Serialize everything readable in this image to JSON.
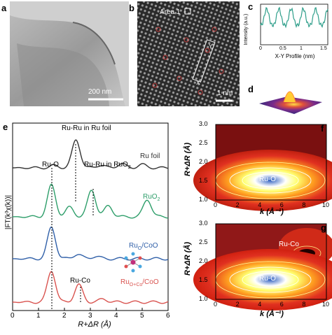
{
  "panels": {
    "a": {
      "label": "a",
      "scale_bar": "200 nm"
    },
    "b": {
      "label": "b",
      "area_label": "Area 1",
      "scale_bar": "1 nm",
      "x_mark": "X",
      "y_mark": "Y"
    },
    "c": {
      "label": "c",
      "xlabel": "X-Y Profile (nm)",
      "ylabel": "Intensity (a.u.)",
      "xticks": [
        "0",
        "0.5",
        "1",
        "1.5"
      ]
    },
    "d": {
      "label": "d"
    },
    "e": {
      "label": "e",
      "ylabel": "|FT(k³χ(k))|",
      "xlabel": "R+ΔR (Å)",
      "annotations": {
        "ru_ru_foil": "Ru-Ru in Ru foil",
        "ru_o": "Ru-O",
        "ru_ru_ruo2": "Ru-Ru in RuO",
        "ru_co": "Ru-Co"
      },
      "legend": {
        "ru_foil": "Ru foil",
        "ruo2": "RuO",
        "ruo_coo_a": "Ru",
        "ruo_coo_b": "O",
        "ruo_coo_c": "/CoO",
        "ruoco_a": "Ru",
        "ruoco_b": "O+Co",
        "ruoco_c": "/CoO",
        "sub2": "2"
      }
    },
    "f": {
      "label": "f",
      "ylabel": "R+ΔR (Å)",
      "xlabel": "k (Å⁻¹)",
      "peak_label": "Ru-O"
    },
    "g": {
      "label": "g",
      "ylabel": "R+ΔR (Å)",
      "xlabel": "k (Å⁻¹)",
      "peak_label_1": "Ru-O",
      "peak_label_2": "Ru-Co"
    }
  },
  "chart_data": [
    {
      "type": "line",
      "panel": "e",
      "xlim": [
        0,
        6
      ],
      "xticks": [
        0,
        1,
        2,
        3,
        4,
        5,
        6
      ],
      "series": [
        {
          "name": "Ru foil",
          "color": "#333333",
          "peaks": [
            [
              1.6,
              0.08
            ],
            [
              2.45,
              1.0
            ],
            [
              3.4,
              0.1
            ],
            [
              4.2,
              0.15
            ],
            [
              5.0,
              0.12
            ]
          ]
        },
        {
          "name": "RuO2",
          "color": "#2e9e6a",
          "peaks": [
            [
              1.5,
              1.0
            ],
            [
              2.2,
              0.3
            ],
            [
              3.05,
              0.85
            ],
            [
              3.7,
              0.35
            ],
            [
              5.2,
              0.55
            ]
          ]
        },
        {
          "name": "RuO/CoO",
          "color": "#2f5fa8",
          "peaks": [
            [
              1.5,
              1.0
            ],
            [
              2.5,
              0.15
            ],
            [
              3.2,
              0.08
            ]
          ]
        },
        {
          "name": "RuO+Co/CoO",
          "color": "#d9534f",
          "peaks": [
            [
              1.5,
              1.0
            ],
            [
              2.55,
              0.55
            ],
            [
              3.5,
              0.1
            ]
          ]
        }
      ]
    },
    {
      "type": "heatmap",
      "panel": "f",
      "xlim": [
        0,
        10
      ],
      "ylim": [
        1.0,
        3.0
      ],
      "xticks": [
        0,
        2,
        4,
        6,
        8,
        10
      ],
      "yticks": [
        1.0,
        1.5,
        2.0,
        2.5,
        3.0
      ],
      "maxima": [
        {
          "label": "Ru-O",
          "k": 4.8,
          "R": 1.45
        }
      ]
    },
    {
      "type": "heatmap",
      "panel": "g",
      "xlim": [
        0,
        10
      ],
      "ylim": [
        1.0,
        3.0
      ],
      "xticks": [
        0,
        2,
        4,
        6,
        8,
        10
      ],
      "yticks": [
        1.0,
        1.5,
        2.0,
        2.5,
        3.0
      ],
      "maxima": [
        {
          "label": "Ru-O",
          "k": 4.8,
          "R": 1.45
        },
        {
          "label": "Ru-Co",
          "k": 7.8,
          "R": 2.1
        }
      ]
    }
  ]
}
